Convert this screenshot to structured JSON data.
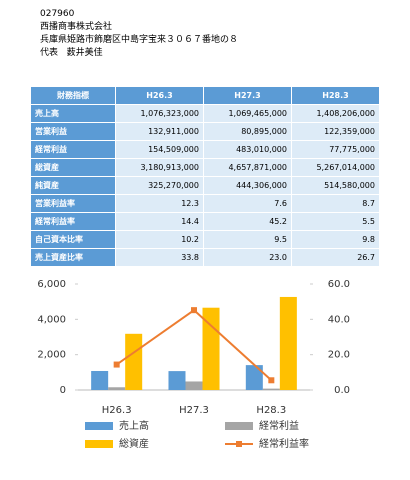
{
  "header": {
    "code": "027960",
    "company": "西播商事株式会社",
    "address": "兵庫県姫路市飾磨区中島字宝来３０６７番地の８",
    "rep_title": "代表",
    "rep_name": "薮井美佳"
  },
  "table": {
    "columns": [
      "財務指標",
      "H26.3",
      "H27.3",
      "H28.3"
    ],
    "rows": [
      [
        "売上高",
        "1,076,323,000",
        "1,069,465,000",
        "1,408,206,000"
      ],
      [
        "営業利益",
        "132,911,000",
        "80,895,000",
        "122,359,000"
      ],
      [
        "経常利益",
        "154,509,000",
        "483,010,000",
        "77,775,000"
      ],
      [
        "総資産",
        "3,180,913,000",
        "4,657,871,000",
        "5,267,014,000"
      ],
      [
        "純資産",
        "325,270,000",
        "444,306,000",
        "514,580,000"
      ],
      [
        "営業利益率",
        "12.3",
        "7.6",
        "8.7"
      ],
      [
        "経常利益率",
        "14.4",
        "45.2",
        "5.5"
      ],
      [
        "自己資本比率",
        "10.2",
        "9.5",
        "9.8"
      ],
      [
        "売上資産比率",
        "33.8",
        "23.0",
        "26.7"
      ]
    ]
  },
  "chart_data": {
    "type": "bar",
    "categories": [
      "H26.3",
      "H27.3",
      "H28.3"
    ],
    "series": [
      {
        "name": "売上高",
        "color": "#5b9bd5",
        "values": [
          1076.3,
          1069.5,
          1408.2
        ]
      },
      {
        "name": "経常利益",
        "color": "#a5a5a5",
        "values": [
          154.5,
          483.0,
          77.8
        ]
      },
      {
        "name": "総資産",
        "color": "#ffc000",
        "values": [
          3180.9,
          4657.9,
          5267.0
        ]
      },
      {
        "name": "経常利益率",
        "color": "#ed7d31",
        "values": [
          14.4,
          45.2,
          5.5
        ],
        "axis": "y2",
        "type": "line"
      }
    ],
    "ylim": [
      0,
      6000
    ],
    "yticks": [
      0,
      {
        "value": 2000,
        "label": "2,000"
      },
      {
        "value": 4000,
        "label": "4,000"
      },
      {
        "value": 6000,
        "label": "6,000"
      }
    ],
    "y2lim": [
      0,
      60
    ],
    "y2ticks": [
      {
        "value": 0,
        "label": "0.0"
      },
      {
        "value": 20,
        "label": "20.0"
      },
      {
        "value": 40,
        "label": "40.0"
      },
      {
        "value": 60,
        "label": "60.0"
      }
    ],
    "grid": false
  }
}
